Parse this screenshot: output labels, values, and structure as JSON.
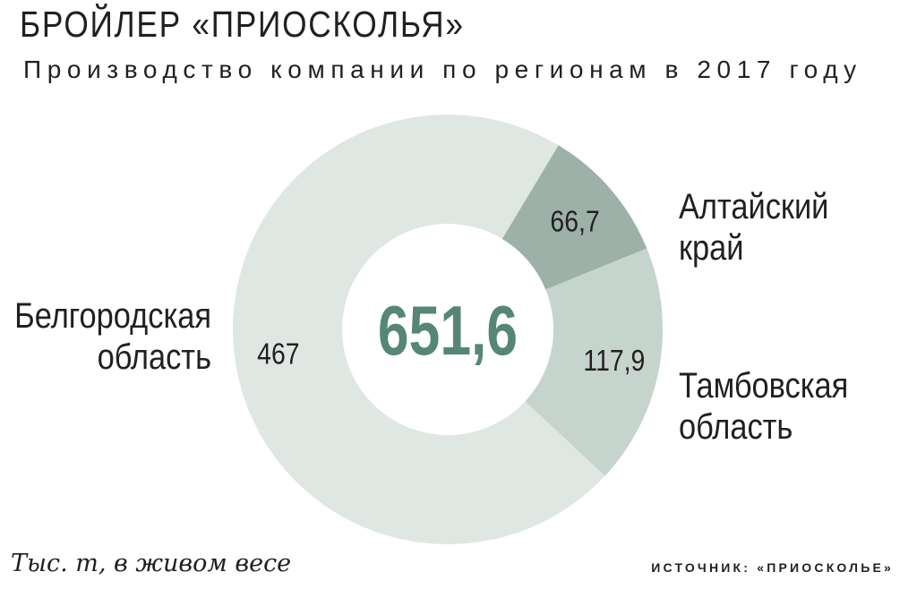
{
  "header": {
    "title": "БРОЙЛЕР «ПРИОСКОЛЬЯ»",
    "subtitle": "Производство компании по регионам в 2017 году"
  },
  "chart_data": {
    "type": "pie",
    "donut": true,
    "title": "БРОЙЛЕР «ПРИОСКОЛЬЯ»",
    "subtitle": "Производство компании по регионам в 2017 году",
    "total_label": "651,6",
    "total": 651.6,
    "unit": "Тыс. т, в живом весе",
    "slices": [
      {
        "label_lines": [
          "Алтайский",
          "край"
        ],
        "value": 66.7,
        "value_label": "66,7",
        "color": "#9db1a8",
        "label_side": "right"
      },
      {
        "label_lines": [
          "Тамбовская",
          "область"
        ],
        "value": 117.9,
        "value_label": "117,9",
        "color": "#c5d4cd",
        "label_side": "right"
      },
      {
        "label_lines": [
          "Белгородская",
          "область"
        ],
        "value": 467,
        "value_label": "467",
        "color": "#dfe7e3",
        "label_side": "left"
      }
    ],
    "center_color": "#558774",
    "legend": "none"
  },
  "footer": {
    "note": "Тыс. т, в живом весе",
    "source": "ИСТОЧНИК: «ПРИОСКОЛЬЕ»"
  }
}
